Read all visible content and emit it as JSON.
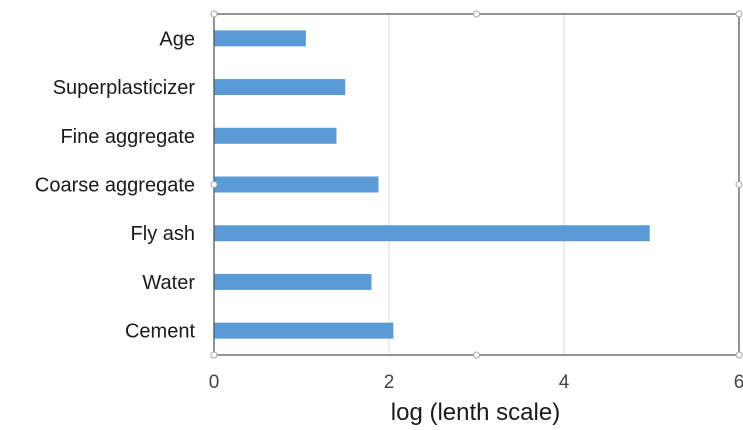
{
  "chart_data": {
    "type": "bar",
    "orientation": "horizontal",
    "categories": [
      "Age",
      "Superplasticizer",
      "Fine aggregate",
      "Coarse aggregate",
      "Fly ash",
      "Water",
      "Cement"
    ],
    "values": [
      1.05,
      1.5,
      1.4,
      1.88,
      4.98,
      1.8,
      2.05
    ],
    "xlabel": "log (lenth scale)",
    "ylabel": "",
    "xlim": [
      0,
      6
    ],
    "xticks": [
      "0",
      "2",
      "4",
      "6"
    ],
    "grid": "vertical",
    "bar_color": "#5b9bd5",
    "grid_color": "#d9d9d9",
    "frame_color": "#595959"
  }
}
